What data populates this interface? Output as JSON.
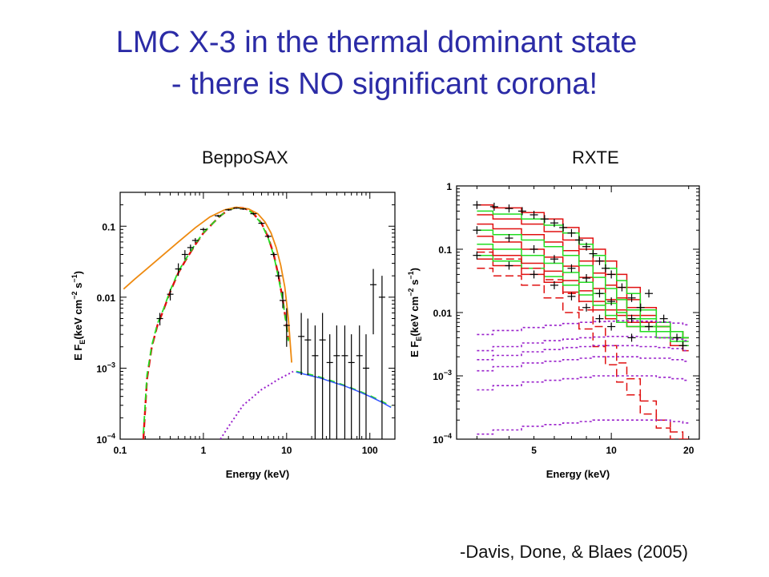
{
  "slide": {
    "title_line1": "LMC X-3 in the thermal dominant state",
    "title_line2": "- there is NO significant corona!",
    "citation": "-Davis, Done, & Blaes (2005)"
  },
  "colors": {
    "title": "#2b2ba6",
    "data": "#000000",
    "red_model": "#e01010",
    "green_model": "#22dd22",
    "orange_model": "#ee8a10",
    "purple_model": "#9a22cc",
    "blue_model": "#3355ff"
  },
  "chart_data": [
    {
      "type": "scatter",
      "panel_label": "BeppoSAX",
      "xlabel": "Energy (keV)",
      "ylabel": "E F_E (keV cm^-2 s^-1)",
      "x_scale": "log",
      "y_scale": "log",
      "xlim": [
        0.1,
        200
      ],
      "ylim": [
        0.0001,
        0.3
      ],
      "x_ticks": [
        {
          "v": 0.1,
          "label": "0.1"
        },
        {
          "v": 1,
          "label": "1"
        },
        {
          "v": 10,
          "label": "10"
        },
        {
          "v": 100,
          "label": "100"
        }
      ],
      "y_ticks": [
        {
          "v": 0.1,
          "label": "0.1"
        },
        {
          "v": 0.01,
          "label": "0.01"
        },
        {
          "v": 0.001,
          "label": "10^-3"
        },
        {
          "v": 0.0001,
          "label": "10^-4"
        }
      ],
      "series": [
        {
          "style": "red-dashed",
          "x": [
            0.19,
            0.21,
            0.24,
            0.28,
            0.33,
            0.4,
            0.5,
            0.6,
            0.8,
            1.0,
            1.3,
            1.6,
            2.0,
            2.5,
            3.0,
            3.5,
            4.0,
            5.0,
            6.0,
            7.0,
            8.0,
            9.0,
            10.0,
            10.5
          ],
          "y": [
            0.0001,
            0.0007,
            0.002,
            0.004,
            0.0065,
            0.012,
            0.022,
            0.032,
            0.055,
            0.08,
            0.11,
            0.14,
            0.17,
            0.185,
            0.18,
            0.17,
            0.15,
            0.11,
            0.07,
            0.04,
            0.02,
            0.009,
            0.004,
            0.0025
          ]
        },
        {
          "style": "green-dashed",
          "x": [
            0.19,
            0.21,
            0.24,
            0.28,
            0.33,
            0.4,
            0.5,
            0.6,
            0.8,
            1.0,
            1.3,
            1.6,
            2.0,
            2.5,
            3.0,
            3.5,
            4.0,
            5.0,
            6.0,
            7.0,
            8.0,
            9.0,
            10.0,
            10.5
          ],
          "y": [
            0.00012,
            0.0008,
            0.0021,
            0.0042,
            0.0067,
            0.0125,
            0.023,
            0.033,
            0.056,
            0.081,
            0.11,
            0.14,
            0.17,
            0.183,
            0.178,
            0.168,
            0.148,
            0.108,
            0.068,
            0.039,
            0.019,
            0.0088,
            0.0039,
            0.0024
          ]
        },
        {
          "style": "orange",
          "x": [
            0.11,
            0.15,
            0.2,
            0.3,
            0.5,
            0.8,
            1.2,
            1.8,
            2.5,
            3.5,
            4.5,
            5.5,
            6.5,
            7.5,
            8.5,
            9.5,
            10.5,
            11.5
          ],
          "y": [
            0.013,
            0.018,
            0.024,
            0.036,
            0.06,
            0.095,
            0.135,
            0.17,
            0.185,
            0.175,
            0.15,
            0.115,
            0.08,
            0.05,
            0.028,
            0.014,
            0.005,
            0.0012
          ]
        },
        {
          "style": "purple-dotted",
          "x": [
            1.6,
            2.0,
            2.5,
            3.0,
            4.0,
            5.0,
            6.5,
            8.0,
            10.0,
            12.0
          ],
          "y": [
            0.0001,
            0.00015,
            0.00022,
            0.0003,
            0.0004,
            0.0005,
            0.0006,
            0.0007,
            0.0008,
            0.0009
          ]
        },
        {
          "style": "green-dashed",
          "x": [
            13,
            18,
            25,
            35,
            50,
            70,
            100,
            140,
            180
          ],
          "y": [
            0.0009,
            0.00083,
            0.00075,
            0.00066,
            0.00057,
            0.00049,
            0.00041,
            0.00034,
            0.00029
          ]
        },
        {
          "style": "blue",
          "x": [
            13,
            18,
            25,
            35,
            50,
            70,
            100,
            140,
            180
          ],
          "y": [
            0.00088,
            0.0008,
            0.00073,
            0.00064,
            0.00056,
            0.00048,
            0.0004,
            0.00033,
            0.00028
          ]
        },
        {
          "style": "data",
          "x": [
            0.3,
            0.4,
            0.5,
            0.6,
            0.7,
            0.8,
            1.0,
            1.5,
            2.0,
            2.5,
            3.0,
            4.0,
            5.0,
            6.0,
            7.0,
            8.0,
            9.0,
            10.0,
            15,
            18,
            22,
            27,
            33,
            40,
            50,
            60,
            75,
            90,
            110,
            140
          ],
          "y": [
            0.005,
            0.011,
            0.025,
            0.04,
            0.05,
            0.063,
            0.09,
            0.14,
            0.17,
            0.18,
            0.175,
            0.15,
            0.11,
            0.072,
            0.04,
            0.02,
            0.009,
            0.004,
            0.0028,
            0.0025,
            0.0015,
            0.0025,
            0.0012,
            0.0015,
            0.0015,
            0.0012,
            0.0015,
            0.001,
            0.015,
            0.01
          ],
          "yerr_lo": [
            0.004,
            0.009,
            0.02,
            0.034,
            0.045,
            0.058,
            0.085,
            0.135,
            0.165,
            0.176,
            0.17,
            0.145,
            0.106,
            0.068,
            0.037,
            0.018,
            0.007,
            0.002,
            0.0008,
            0.0008,
            0.0001,
            0.0001,
            0.0001,
            0.0001,
            0.0001,
            0.0001,
            0.0001,
            0.0001,
            0.003,
            0.0001
          ],
          "yerr_hi": [
            0.006,
            0.013,
            0.03,
            0.046,
            0.055,
            0.068,
            0.095,
            0.145,
            0.175,
            0.184,
            0.18,
            0.155,
            0.114,
            0.076,
            0.043,
            0.023,
            0.012,
            0.007,
            0.006,
            0.005,
            0.004,
            0.006,
            0.003,
            0.004,
            0.004,
            0.003,
            0.004,
            0.003,
            0.025,
            0.02
          ]
        }
      ]
    },
    {
      "type": "line",
      "panel_label": "RXTE",
      "xlabel": "Energy (keV)",
      "ylabel": "E F_E (keV cm^-2 s^-1)",
      "x_scale": "log",
      "y_scale": "log",
      "xlim": [
        2.5,
        22
      ],
      "ylim": [
        0.0001,
        1
      ],
      "x_ticks": [
        {
          "v": 5,
          "label": "5"
        },
        {
          "v": 10,
          "label": "10"
        },
        {
          "v": 20,
          "label": "20"
        }
      ],
      "y_ticks": [
        {
          "v": 1,
          "label": "1"
        },
        {
          "v": 0.1,
          "label": "0.1"
        },
        {
          "v": 0.01,
          "label": "0.01"
        },
        {
          "v": 0.001,
          "label": "10^-3"
        },
        {
          "v": 0.0001,
          "label": "10^-4"
        }
      ],
      "families": [
        {
          "color": "red",
          "dashed": false,
          "x": [
            3,
            4,
            5,
            6,
            7,
            8,
            9,
            10,
            11,
            12,
            14,
            16,
            18,
            20
          ],
          "curves": [
            [
              0.5,
              0.45,
              0.38,
              0.3,
              0.22,
              0.15,
              0.1,
              0.065,
              0.04,
              0.025,
              0.012,
              0.007,
              0.005,
              0.004
            ],
            [
              0.35,
              0.3,
              0.25,
              0.19,
              0.14,
              0.1,
              0.065,
              0.04,
              0.025,
              0.016,
              0.009,
              0.006,
              0.005,
              0.004
            ],
            [
              0.25,
              0.21,
              0.17,
              0.13,
              0.095,
              0.065,
              0.042,
              0.027,
              0.017,
              0.012,
              0.008,
              0.006,
              0.005,
              0.004
            ],
            [
              0.16,
              0.13,
              0.1,
              0.075,
              0.054,
              0.036,
              0.024,
              0.016,
              0.011,
              0.009,
              0.007,
              0.006,
              0.005,
              0.004
            ],
            [
              0.1,
              0.08,
              0.06,
              0.045,
              0.032,
              0.022,
              0.015,
              0.011,
              0.009,
              0.007,
              0.006,
              0.005,
              0.004,
              0.003
            ],
            [
              0.07,
              0.055,
              0.04,
              0.03,
              0.021,
              0.015,
              0.011,
              0.008,
              0.007,
              0.006,
              0.005,
              0.004,
              0.003,
              0.0025
            ]
          ]
        },
        {
          "color": "green",
          "dashed": false,
          "x": [
            3,
            4,
            5,
            6,
            7,
            8,
            9,
            10,
            11,
            12,
            14,
            16,
            18,
            20
          ],
          "curves": [
            [
              0.4,
              0.36,
              0.3,
              0.24,
              0.18,
              0.12,
              0.08,
              0.05,
              0.032,
              0.02,
              0.011,
              0.007,
              0.005,
              0.004
            ],
            [
              0.2,
              0.17,
              0.14,
              0.11,
              0.08,
              0.055,
              0.036,
              0.024,
              0.016,
              0.011,
              0.008,
              0.006,
              0.005,
              0.004
            ],
            [
              0.12,
              0.1,
              0.08,
              0.06,
              0.043,
              0.03,
              0.02,
              0.014,
              0.01,
              0.008,
              0.006,
              0.005,
              0.004,
              0.0035
            ],
            [
              0.08,
              0.065,
              0.05,
              0.037,
              0.027,
              0.019,
              0.013,
              0.009,
              0.007,
              0.006,
              0.005,
              0.004,
              0.0035,
              0.003
            ]
          ]
        },
        {
          "color": "red",
          "dashed": true,
          "x": [
            3,
            4,
            5,
            6,
            7,
            8,
            9,
            10,
            11,
            12,
            14,
            16,
            18,
            20
          ],
          "curves": [
            [
              0.09,
              0.07,
              0.05,
              0.033,
              0.02,
              0.011,
              0.006,
              0.003,
              0.0016,
              0.0009,
              0.0004,
              0.0002,
              0.00013,
              0.0001
            ],
            [
              0.05,
              0.038,
              0.027,
              0.017,
              0.01,
              0.0055,
              0.0029,
              0.0015,
              0.0008,
              0.0005,
              0.00025,
              0.00015,
              0.0001,
              0.0001
            ]
          ]
        },
        {
          "color": "purple",
          "dashed": true,
          "x": [
            3,
            4,
            5,
            6,
            7,
            8,
            9,
            10,
            11,
            12,
            14,
            16,
            18,
            20
          ],
          "curves": [
            [
              0.0045,
              0.0052,
              0.0058,
              0.0063,
              0.0067,
              0.007,
              0.0072,
              0.0073,
              0.0074,
              0.0074,
              0.0073,
              0.0071,
              0.0068,
              0.0064
            ],
            [
              0.0025,
              0.0029,
              0.0033,
              0.0036,
              0.0038,
              0.004,
              0.0041,
              0.0042,
              0.0042,
              0.0042,
              0.0041,
              0.004,
              0.0038,
              0.0036
            ],
            [
              0.0018,
              0.0021,
              0.0024,
              0.0026,
              0.0028,
              0.0029,
              0.003,
              0.003,
              0.003,
              0.003,
              0.0029,
              0.0028,
              0.0027,
              0.0025
            ],
            [
              0.0012,
              0.0014,
              0.0016,
              0.0017,
              0.0018,
              0.0019,
              0.002,
              0.002,
              0.002,
              0.002,
              0.0019,
              0.0019,
              0.0018,
              0.0017
            ],
            [
              0.0006,
              0.0007,
              0.0008,
              0.00085,
              0.0009,
              0.00095,
              0.001,
              0.001,
              0.001,
              0.001,
              0.001,
              0.00095,
              0.0009,
              0.00085
            ],
            [
              0.00012,
              0.00014,
              0.00016,
              0.00017,
              0.00018,
              0.00019,
              0.0002,
              0.0002,
              0.0002,
              0.0002,
              0.0002,
              0.0002,
              0.00019,
              0.00018
            ]
          ]
        }
      ],
      "data_points": {
        "x": [
          3,
          3.5,
          4,
          4.5,
          5,
          5.5,
          6,
          6.5,
          7,
          7.5,
          8,
          8.5,
          9,
          9.5,
          10,
          11,
          12,
          13,
          14,
          3,
          4,
          5,
          6,
          7,
          8,
          9,
          10,
          12,
          3,
          4,
          5,
          6,
          7,
          8,
          9,
          10,
          12,
          14,
          16,
          18,
          19
        ],
        "y": [
          0.5,
          0.47,
          0.44,
          0.4,
          0.35,
          0.3,
          0.26,
          0.22,
          0.18,
          0.14,
          0.11,
          0.085,
          0.065,
          0.05,
          0.04,
          0.025,
          0.017,
          0.012,
          0.02,
          0.2,
          0.15,
          0.1,
          0.07,
          0.05,
          0.035,
          0.02,
          0.015,
          0.008,
          0.08,
          0.055,
          0.04,
          0.027,
          0.018,
          0.012,
          0.008,
          0.006,
          0.004,
          0.006,
          0.008,
          0.004,
          0.003
        ]
      }
    }
  ],
  "panels": {
    "left_label": "BeppoSAX",
    "right_label": "RXTE",
    "x_axis_title": "Energy (keV)",
    "y_axis_title": "E F",
    "y_axis_sub": "E",
    "y_axis_units": "(keV cm",
    "y_axis_exp1": "−2",
    "y_axis_mid": " s",
    "y_axis_exp2": "−1",
    "y_axis_close": ")",
    "tick_exp_base": "10",
    "tick_exp_m3": "−3",
    "tick_exp_m4": "−4"
  }
}
